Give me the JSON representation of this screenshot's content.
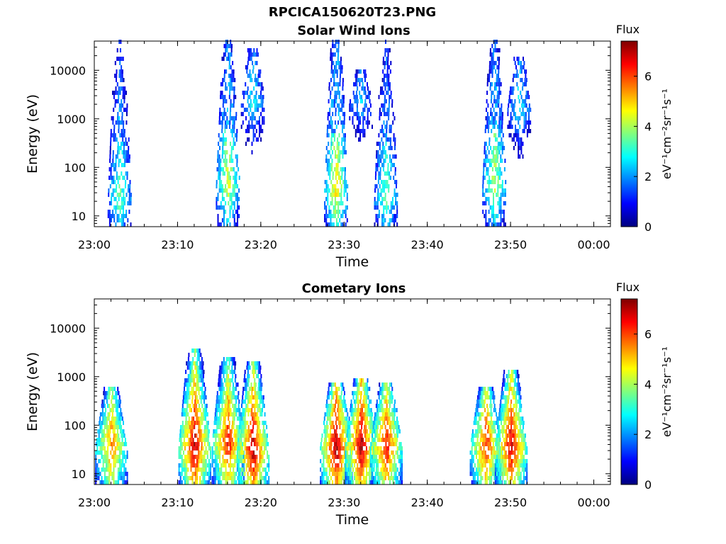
{
  "figure": {
    "title": "RPCICA150620T23.PNG"
  },
  "colormap": [
    "#00007f",
    "#0000ff",
    "#007fff",
    "#00ffff",
    "#7fff7f",
    "#ffff00",
    "#ff7f00",
    "#ff0000",
    "#7f0000"
  ],
  "chart_data": [
    {
      "type": "heatmap",
      "title": "Solar Wind Ions",
      "xlabel": "Time",
      "ylabel": "Energy (eV)",
      "x_range": [
        "23:00",
        "00:02"
      ],
      "x_ticks": [
        "23:00",
        "23:10",
        "23:20",
        "23:30",
        "23:40",
        "23:50",
        "00:00"
      ],
      "y_scale": "log",
      "ylim": [
        6,
        40000
      ],
      "y_ticks": [
        "10",
        "100",
        "1000",
        "10000"
      ],
      "colorbar": {
        "label_top": "Flux",
        "unit": "eV⁻¹cm⁻²sr⁻¹s⁻¹",
        "range": [
          0,
          7.4
        ],
        "ticks": [
          "0",
          "2",
          "4",
          "6"
        ]
      },
      "bursts": [
        {
          "t": "23:03",
          "peak_energy": 20,
          "max_energy": 35000,
          "peak_flux": 3.6
        },
        {
          "t": "23:16",
          "peak_energy": 40,
          "max_energy": 35000,
          "peak_flux": 4.5
        },
        {
          "t": "23:19",
          "peak_energy": 2000,
          "max_energy": 25000,
          "peak_flux": 2.8
        },
        {
          "t": "23:29",
          "peak_energy": 30,
          "max_energy": 35000,
          "peak_flux": 4.9
        },
        {
          "t": "23:32",
          "peak_energy": 2000,
          "max_energy": 9000,
          "peak_flux": 2.4
        },
        {
          "t": "23:35",
          "peak_energy": 20,
          "max_energy": 35000,
          "peak_flux": 3.6
        },
        {
          "t": "23:48",
          "peak_energy": 40,
          "max_energy": 35000,
          "peak_flux": 4.3
        },
        {
          "t": "23:51",
          "peak_energy": 1500,
          "max_energy": 18000,
          "peak_flux": 2.8
        }
      ]
    },
    {
      "type": "heatmap",
      "title": "Cometary Ions",
      "xlabel": "Time",
      "ylabel": "Energy (eV)",
      "x_range": [
        "23:00",
        "00:02"
      ],
      "x_ticks": [
        "23:00",
        "23:10",
        "23:20",
        "23:30",
        "23:40",
        "23:50",
        "00:00"
      ],
      "y_scale": "log",
      "ylim": [
        6,
        40000
      ],
      "y_ticks": [
        "10",
        "100",
        "1000",
        "10000"
      ],
      "colorbar": {
        "label_top": "Flux",
        "unit": "eV⁻¹cm⁻²sr⁻¹s⁻¹",
        "range": [
          0,
          7.4
        ],
        "ticks": [
          "0",
          "2",
          "4",
          "6"
        ]
      },
      "bursts": [
        {
          "t": "23:02",
          "peak_energy": 35,
          "max_energy": 600,
          "peak_flux": 5.8
        },
        {
          "t": "23:12",
          "peak_energy": 35,
          "max_energy": 3500,
          "peak_flux": 7.2
        },
        {
          "t": "23:16",
          "peak_energy": 40,
          "max_energy": 2500,
          "peak_flux": 6.6
        },
        {
          "t": "23:19",
          "peak_energy": 30,
          "max_energy": 2000,
          "peak_flux": 7.2
        },
        {
          "t": "23:29",
          "peak_energy": 35,
          "max_energy": 700,
          "peak_flux": 7.3
        },
        {
          "t": "23:32",
          "peak_energy": 35,
          "max_energy": 900,
          "peak_flux": 7.2
        },
        {
          "t": "23:35",
          "peak_energy": 35,
          "max_energy": 650,
          "peak_flux": 6.6
        },
        {
          "t": "23:47",
          "peak_energy": 35,
          "max_energy": 550,
          "peak_flux": 6.4
        },
        {
          "t": "23:50",
          "peak_energy": 35,
          "max_energy": 1200,
          "peak_flux": 7.0
        }
      ]
    }
  ]
}
